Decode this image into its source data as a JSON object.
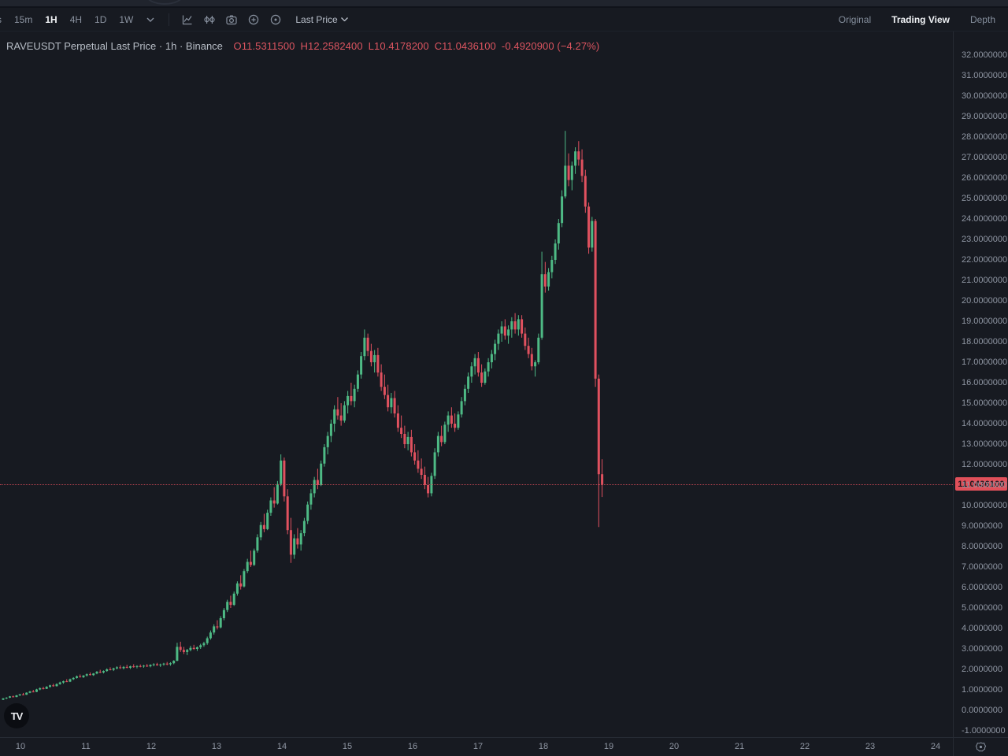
{
  "toolbar": {
    "intervals": [
      {
        "label": "s",
        "active": false
      },
      {
        "label": "15m",
        "active": false
      },
      {
        "label": "1H",
        "active": true
      },
      {
        "label": "4H",
        "active": false
      },
      {
        "label": "1D",
        "active": false
      },
      {
        "label": "1W",
        "active": false
      }
    ],
    "icon_names": [
      "chevron-down-icon",
      "indicators-icon",
      "compare-icon",
      "screenshot-icon",
      "zoom-in-icon",
      "reset-view-icon"
    ],
    "price_mode_label": "Last Price",
    "right_tabs": [
      {
        "label": "Original",
        "active": false
      },
      {
        "label": "Trading View",
        "active": true
      },
      {
        "label": "Depth",
        "active": false
      }
    ]
  },
  "legend": {
    "symbol_title": "RAVEUSDT Perpetual Last Price",
    "sep1": "·",
    "interval": "1h",
    "sep2": "·",
    "exchange": "Binance",
    "ohlc": {
      "open": "O11.5311500",
      "high": "H12.2582400",
      "low": "L10.4178200",
      "close": "C11.0436100",
      "change": "-0.4920900 (−4.27%)"
    }
  },
  "logo_text": "TV",
  "chart_data": {
    "type": "candlestick",
    "symbol": "RAVEUSDT Perpetual",
    "exchange": "Binance",
    "interval": "1h",
    "last_price": 11.04361,
    "last_price_label": "11.0436100",
    "grid": false,
    "colors": {
      "up": "#4eba85",
      "down": "#e0515f",
      "marker_bg": "#e0505a",
      "marker_text": "#1a161c",
      "line": "#d24b58"
    },
    "y_axis": {
      "min": -1,
      "max": 32,
      "tick_step": 1,
      "decimals": 7,
      "ticks": [
        32,
        31,
        30,
        29,
        28,
        27,
        26,
        25,
        24,
        23,
        22,
        21,
        20,
        19,
        18,
        17,
        16,
        15,
        14,
        13,
        12,
        11,
        10,
        9,
        8,
        7,
        6,
        5,
        4,
        3,
        2,
        1,
        0,
        -1
      ]
    },
    "x_axis": {
      "tick_labels": [
        "10",
        "11",
        "12",
        "13",
        "14",
        "15",
        "16",
        "17",
        "18",
        "19",
        "20",
        "21",
        "22",
        "23",
        "24"
      ]
    },
    "candles": [
      [
        0.52,
        0.6,
        0.5,
        0.58
      ],
      [
        0.58,
        0.64,
        0.55,
        0.62
      ],
      [
        0.62,
        0.7,
        0.6,
        0.68
      ],
      [
        0.68,
        0.72,
        0.63,
        0.65
      ],
      [
        0.65,
        0.75,
        0.64,
        0.73
      ],
      [
        0.73,
        0.8,
        0.7,
        0.78
      ],
      [
        0.78,
        0.85,
        0.74,
        0.76
      ],
      [
        0.76,
        0.88,
        0.75,
        0.86
      ],
      [
        0.86,
        0.95,
        0.84,
        0.92
      ],
      [
        0.92,
        1.0,
        0.88,
        0.9
      ],
      [
        0.9,
        1.05,
        0.89,
        1.02
      ],
      [
        1.02,
        1.12,
        0.98,
        1.08
      ],
      [
        1.08,
        1.15,
        1.02,
        1.05
      ],
      [
        1.05,
        1.18,
        1.04,
        1.15
      ],
      [
        1.15,
        1.25,
        1.1,
        1.22
      ],
      [
        1.22,
        1.3,
        1.15,
        1.18
      ],
      [
        1.18,
        1.32,
        1.16,
        1.28
      ],
      [
        1.28,
        1.4,
        1.25,
        1.36
      ],
      [
        1.36,
        1.45,
        1.3,
        1.42
      ],
      [
        1.42,
        1.52,
        1.38,
        1.4
      ],
      [
        1.4,
        1.55,
        1.38,
        1.52
      ],
      [
        1.52,
        1.62,
        1.48,
        1.58
      ],
      [
        1.58,
        1.7,
        1.55,
        1.66
      ],
      [
        1.66,
        1.75,
        1.6,
        1.62
      ],
      [
        1.62,
        1.72,
        1.58,
        1.7
      ],
      [
        1.7,
        1.8,
        1.65,
        1.76
      ],
      [
        1.76,
        1.85,
        1.7,
        1.72
      ],
      [
        1.72,
        1.82,
        1.68,
        1.8
      ],
      [
        1.8,
        1.92,
        1.76,
        1.88
      ],
      [
        1.88,
        1.98,
        1.82,
        1.85
      ],
      [
        1.85,
        1.95,
        1.8,
        1.92
      ],
      [
        1.92,
        2.05,
        1.88,
        2.0
      ],
      [
        2.0,
        2.1,
        1.95,
        1.98
      ],
      [
        1.98,
        2.08,
        1.92,
        2.05
      ],
      [
        2.05,
        2.15,
        2.0,
        2.1
      ],
      [
        2.1,
        2.2,
        2.02,
        2.06
      ],
      [
        2.06,
        2.16,
        2.0,
        2.12
      ],
      [
        2.12,
        2.22,
        2.05,
        2.08
      ],
      [
        2.08,
        2.18,
        2.02,
        2.15
      ],
      [
        2.15,
        2.25,
        2.08,
        2.12
      ],
      [
        2.12,
        2.2,
        2.05,
        2.16
      ],
      [
        2.16,
        2.24,
        2.1,
        2.14
      ],
      [
        2.14,
        2.22,
        2.08,
        2.18
      ],
      [
        2.18,
        2.26,
        2.12,
        2.15
      ],
      [
        2.15,
        2.25,
        2.1,
        2.22
      ],
      [
        2.22,
        2.3,
        2.15,
        2.25
      ],
      [
        2.25,
        2.32,
        2.18,
        2.2
      ],
      [
        2.2,
        2.28,
        2.12,
        2.24
      ],
      [
        2.24,
        2.32,
        2.18,
        2.28
      ],
      [
        2.28,
        2.36,
        2.2,
        2.25
      ],
      [
        2.25,
        2.35,
        2.18,
        2.3
      ],
      [
        2.3,
        2.45,
        2.25,
        2.42
      ],
      [
        2.42,
        3.3,
        2.4,
        3.1
      ],
      [
        3.1,
        3.35,
        2.85,
        2.95
      ],
      [
        2.95,
        3.1,
        2.75,
        2.85
      ],
      [
        2.85,
        3.0,
        2.7,
        2.95
      ],
      [
        2.95,
        3.15,
        2.88,
        3.05
      ],
      [
        3.05,
        3.2,
        2.95,
        3.0
      ],
      [
        3.0,
        3.12,
        2.9,
        3.08
      ],
      [
        3.08,
        3.25,
        3.0,
        3.18
      ],
      [
        3.18,
        3.35,
        3.1,
        3.28
      ],
      [
        3.28,
        3.6,
        3.2,
        3.52
      ],
      [
        3.52,
        3.9,
        3.45,
        3.8
      ],
      [
        3.8,
        4.2,
        3.7,
        4.1
      ],
      [
        4.1,
        4.4,
        3.95,
        4.05
      ],
      [
        4.05,
        4.6,
        4.0,
        4.5
      ],
      [
        4.5,
        5.0,
        4.4,
        4.9
      ],
      [
        4.9,
        5.4,
        4.8,
        5.3
      ],
      [
        5.3,
        5.6,
        5.0,
        5.15
      ],
      [
        5.15,
        5.8,
        5.1,
        5.7
      ],
      [
        5.7,
        6.3,
        5.6,
        6.2
      ],
      [
        6.2,
        6.6,
        5.9,
        6.05
      ],
      [
        6.05,
        6.9,
        6.0,
        6.8
      ],
      [
        6.8,
        7.4,
        6.7,
        7.25
      ],
      [
        7.25,
        7.8,
        7.0,
        7.1
      ],
      [
        7.1,
        7.9,
        7.05,
        7.8
      ],
      [
        7.8,
        8.6,
        7.7,
        8.45
      ],
      [
        8.45,
        9.2,
        8.3,
        9.05
      ],
      [
        9.05,
        9.6,
        8.7,
        8.85
      ],
      [
        8.85,
        9.8,
        8.8,
        9.65
      ],
      [
        9.65,
        10.4,
        9.5,
        10.25
      ],
      [
        10.25,
        10.9,
        9.9,
        10.1
      ],
      [
        10.1,
        11.2,
        10.05,
        11.05
      ],
      [
        11.05,
        12.5,
        10.95,
        12.2
      ],
      [
        12.2,
        12.35,
        10.2,
        10.45
      ],
      [
        10.45,
        10.8,
        8.6,
        8.8
      ],
      [
        8.8,
        9.4,
        7.2,
        7.6
      ],
      [
        7.6,
        8.6,
        7.4,
        8.4
      ],
      [
        8.4,
        8.9,
        7.9,
        8.1
      ],
      [
        8.1,
        8.8,
        7.8,
        8.65
      ],
      [
        8.65,
        9.4,
        8.5,
        9.25
      ],
      [
        9.25,
        10.2,
        9.1,
        10.05
      ],
      [
        10.05,
        10.8,
        9.8,
        10.6
      ],
      [
        10.6,
        11.4,
        10.4,
        11.25
      ],
      [
        11.25,
        11.8,
        10.8,
        11.0
      ],
      [
        11.0,
        12.2,
        10.95,
        12.05
      ],
      [
        12.05,
        13.0,
        11.9,
        12.85
      ],
      [
        12.85,
        13.6,
        12.5,
        13.4
      ],
      [
        13.4,
        14.2,
        13.1,
        14.0
      ],
      [
        14.0,
        14.9,
        13.6,
        14.7
      ],
      [
        14.7,
        15.3,
        14.2,
        14.4
      ],
      [
        14.4,
        15.0,
        13.9,
        14.15
      ],
      [
        14.15,
        15.1,
        14.05,
        14.9
      ],
      [
        14.9,
        15.6,
        14.5,
        15.35
      ],
      [
        15.35,
        16.0,
        14.9,
        15.1
      ],
      [
        15.1,
        15.9,
        14.8,
        15.7
      ],
      [
        15.7,
        16.6,
        15.55,
        16.4
      ],
      [
        16.4,
        17.5,
        16.2,
        17.3
      ],
      [
        17.3,
        18.6,
        17.1,
        18.2
      ],
      [
        18.2,
        18.4,
        17.3,
        17.55
      ],
      [
        17.55,
        17.9,
        16.8,
        17.0
      ],
      [
        17.0,
        17.6,
        16.5,
        17.35
      ],
      [
        17.35,
        17.7,
        16.3,
        16.5
      ],
      [
        16.5,
        16.9,
        15.6,
        15.8
      ],
      [
        15.8,
        16.4,
        15.2,
        15.4
      ],
      [
        15.4,
        15.9,
        14.6,
        14.8
      ],
      [
        14.8,
        15.5,
        14.5,
        15.25
      ],
      [
        15.25,
        15.6,
        14.3,
        14.5
      ],
      [
        14.5,
        14.9,
        13.6,
        13.8
      ],
      [
        13.8,
        14.4,
        13.3,
        13.5
      ],
      [
        13.5,
        13.9,
        12.8,
        13.0
      ],
      [
        13.0,
        13.6,
        12.7,
        13.35
      ],
      [
        13.35,
        13.7,
        12.4,
        12.6
      ],
      [
        12.6,
        13.0,
        12.0,
        12.2
      ],
      [
        12.2,
        12.7,
        11.6,
        11.8
      ],
      [
        11.8,
        12.3,
        11.3,
        11.5
      ],
      [
        11.5,
        11.9,
        10.8,
        11.0
      ],
      [
        11.0,
        11.4,
        10.4,
        10.6
      ],
      [
        10.6,
        11.6,
        10.45,
        11.45
      ],
      [
        11.45,
        12.8,
        11.3,
        12.6
      ],
      [
        12.6,
        13.6,
        12.4,
        13.4
      ],
      [
        13.4,
        13.9,
        12.9,
        13.1
      ],
      [
        13.1,
        14.1,
        13.0,
        13.95
      ],
      [
        13.95,
        14.6,
        13.6,
        14.4
      ],
      [
        14.4,
        14.8,
        13.8,
        14.0
      ],
      [
        14.0,
        14.5,
        13.6,
        13.8
      ],
      [
        13.8,
        14.6,
        13.7,
        14.45
      ],
      [
        14.45,
        15.3,
        14.3,
        15.1
      ],
      [
        15.1,
        15.9,
        14.9,
        15.7
      ],
      [
        15.7,
        16.5,
        15.5,
        16.3
      ],
      [
        16.3,
        17.0,
        16.0,
        16.8
      ],
      [
        16.8,
        17.4,
        16.4,
        17.2
      ],
      [
        17.2,
        17.5,
        16.3,
        16.5
      ],
      [
        16.5,
        16.9,
        15.8,
        16.0
      ],
      [
        16.0,
        16.7,
        15.9,
        16.55
      ],
      [
        16.55,
        17.2,
        16.3,
        17.0
      ],
      [
        17.0,
        17.6,
        16.7,
        17.4
      ],
      [
        17.4,
        18.1,
        17.1,
        17.9
      ],
      [
        17.9,
        18.6,
        17.6,
        18.4
      ],
      [
        18.4,
        19.0,
        18.0,
        18.75
      ],
      [
        18.75,
        19.1,
        18.1,
        18.3
      ],
      [
        18.3,
        18.8,
        17.9,
        18.6
      ],
      [
        18.6,
        19.2,
        18.2,
        19.0
      ],
      [
        19.0,
        19.4,
        18.4,
        18.6
      ],
      [
        18.6,
        19.3,
        18.3,
        19.1
      ],
      [
        19.1,
        19.3,
        18.2,
        18.4
      ],
      [
        18.4,
        18.7,
        17.6,
        17.8
      ],
      [
        17.8,
        18.2,
        17.2,
        17.4
      ],
      [
        17.4,
        17.7,
        16.6,
        16.8
      ],
      [
        16.8,
        17.1,
        16.3,
        17.0
      ],
      [
        17.0,
        18.4,
        16.9,
        18.2
      ],
      [
        18.2,
        22.4,
        18.1,
        21.3
      ],
      [
        21.3,
        21.9,
        20.4,
        20.7
      ],
      [
        20.7,
        21.6,
        20.5,
        21.4
      ],
      [
        21.4,
        22.2,
        21.1,
        22.0
      ],
      [
        22.0,
        23.0,
        21.8,
        22.8
      ],
      [
        22.8,
        24.0,
        22.5,
        23.8
      ],
      [
        23.8,
        25.4,
        23.6,
        25.1
      ],
      [
        25.1,
        28.3,
        25.0,
        26.6
      ],
      [
        26.6,
        27.2,
        25.6,
        25.9
      ],
      [
        25.9,
        26.8,
        25.4,
        26.6
      ],
      [
        26.6,
        27.5,
        26.2,
        27.3
      ],
      [
        27.3,
        27.8,
        26.6,
        26.9
      ],
      [
        26.9,
        27.4,
        25.8,
        26.1
      ],
      [
        26.1,
        26.4,
        24.3,
        24.6
      ],
      [
        24.6,
        24.8,
        22.3,
        22.6
      ],
      [
        22.6,
        24.1,
        22.4,
        23.9
      ],
      [
        23.9,
        24.0,
        15.8,
        16.2
      ],
      [
        16.2,
        16.4,
        8.95,
        11.53
      ],
      [
        11.53,
        12.26,
        10.42,
        11.04
      ]
    ]
  }
}
